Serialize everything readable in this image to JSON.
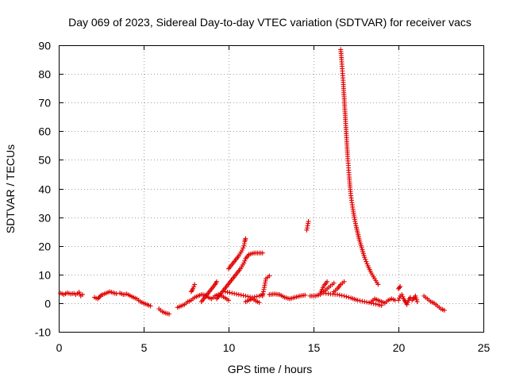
{
  "chart_data": {
    "type": "scatter",
    "title": "Day 069 of 2023, Sidereal Day-to-day VTEC variation (SDTVAR) for receiver vacs",
    "xlabel": "GPS time / hours",
    "ylabel": "SDTVAR / TECUs",
    "xlim": [
      0,
      25
    ],
    "ylim": [
      -10,
      90
    ],
    "xticks": [
      0,
      5,
      10,
      15,
      20,
      25
    ],
    "yticks": [
      -10,
      0,
      10,
      20,
      30,
      40,
      50,
      60,
      70,
      80,
      90
    ],
    "grid": true,
    "marker": "+",
    "color": "#e00000",
    "series": [
      {
        "name": "SDTVAR",
        "segments": [
          [
            [
              0.1,
              3.5
            ],
            [
              0.3,
              3.0
            ],
            [
              0.5,
              3.6
            ],
            [
              0.7,
              3.2
            ],
            [
              0.9,
              3.4
            ],
            [
              1.0,
              3.0
            ],
            [
              1.2,
              3.8
            ],
            [
              1.3,
              2.5
            ],
            [
              1.4,
              3.0
            ]
          ],
          [
            [
              2.1,
              2.0
            ],
            [
              2.3,
              1.5
            ],
            [
              2.5,
              2.8
            ],
            [
              2.8,
              3.5
            ],
            [
              3.0,
              4.0
            ],
            [
              3.2,
              3.6
            ],
            [
              3.4,
              3.3
            ]
          ],
          [
            [
              3.6,
              3.5
            ],
            [
              3.8,
              3.0
            ],
            [
              4.0,
              3.2
            ],
            [
              4.2,
              2.6
            ],
            [
              4.4,
              2.0
            ],
            [
              4.6,
              1.5
            ],
            [
              4.8,
              0.5
            ],
            [
              5.0,
              0.0
            ],
            [
              5.2,
              -0.5
            ],
            [
              5.4,
              -1.0
            ]
          ],
          [
            [
              5.9,
              -2.0
            ],
            [
              6.1,
              -3.0
            ],
            [
              6.3,
              -3.5
            ],
            [
              6.5,
              -3.8
            ]
          ],
          [
            [
              7.0,
              -1.5
            ],
            [
              7.2,
              -1.0
            ],
            [
              7.4,
              -0.5
            ],
            [
              7.6,
              0.5
            ],
            [
              7.8,
              1.0
            ],
            [
              8.0,
              2.0
            ],
            [
              8.2,
              2.5
            ],
            [
              8.4,
              3.0
            ],
            [
              8.6,
              2.8
            ],
            [
              8.8,
              2.0
            ],
            [
              9.0,
              1.5
            ],
            [
              9.2,
              2.5
            ],
            [
              9.4,
              3.0
            ],
            [
              9.6,
              2.5
            ],
            [
              9.8,
              1.8
            ],
            [
              10.0,
              1.0
            ]
          ],
          [
            [
              7.8,
              4.0
            ],
            [
              7.9,
              5.0
            ],
            [
              8.0,
              6.5
            ]
          ],
          [
            [
              8.4,
              0.5
            ],
            [
              8.6,
              2.0
            ],
            [
              8.8,
              3.5
            ],
            [
              9.0,
              5.0
            ],
            [
              9.2,
              6.5
            ],
            [
              9.3,
              7.5
            ]
          ],
          [
            [
              9.3,
              1.5
            ],
            [
              9.5,
              3.0
            ],
            [
              9.7,
              4.5
            ],
            [
              9.9,
              6.0
            ],
            [
              10.1,
              7.5
            ],
            [
              10.3,
              9.0
            ],
            [
              10.5,
              10.5
            ],
            [
              10.7,
              12.0
            ],
            [
              10.9,
              14.0
            ],
            [
              11.0,
              15.5
            ],
            [
              11.2,
              17.0
            ],
            [
              11.5,
              17.5
            ],
            [
              11.8,
              17.5
            ],
            [
              12.0,
              17.5
            ]
          ],
          [
            [
              10.0,
              12.0
            ],
            [
              10.2,
              13.5
            ],
            [
              10.4,
              15.0
            ],
            [
              10.6,
              16.5
            ],
            [
              10.8,
              18.5
            ],
            [
              10.9,
              20.0
            ],
            [
              10.95,
              21.5
            ],
            [
              11.0,
              22.5
            ]
          ],
          [
            [
              9.8,
              4.0
            ],
            [
              10.2,
              3.5
            ],
            [
              10.6,
              3.0
            ],
            [
              11.0,
              2.5
            ],
            [
              11.4,
              2.0
            ],
            [
              11.8,
              2.5
            ],
            [
              12.0,
              3.0
            ]
          ],
          [
            [
              11.0,
              0.5
            ],
            [
              11.2,
              1.0
            ],
            [
              11.4,
              1.5
            ],
            [
              11.6,
              0.8
            ],
            [
              11.8,
              0.2
            ]
          ],
          [
            [
              12.0,
              2.5
            ],
            [
              12.2,
              8.5
            ],
            [
              12.4,
              9.5
            ]
          ],
          [
            [
              12.4,
              3.0
            ],
            [
              12.7,
              3.2
            ],
            [
              13.0,
              3.0
            ],
            [
              13.3,
              2.0
            ],
            [
              13.6,
              1.5
            ],
            [
              13.9,
              2.0
            ],
            [
              14.2,
              2.5
            ],
            [
              14.5,
              2.8
            ]
          ],
          [
            [
              14.6,
              25.5
            ],
            [
              14.65,
              27.0
            ],
            [
              14.7,
              28.5
            ]
          ],
          [
            [
              14.8,
              2.5
            ],
            [
              15.1,
              2.5
            ],
            [
              15.4,
              3.0
            ],
            [
              15.6,
              4.0
            ],
            [
              15.8,
              5.0
            ],
            [
              16.0,
              6.0
            ],
            [
              16.2,
              7.0
            ]
          ],
          [
            [
              15.4,
              3.5
            ],
            [
              15.6,
              6.0
            ],
            [
              15.8,
              7.5
            ]
          ],
          [
            [
              16.2,
              4.0
            ],
            [
              16.4,
              5.0
            ],
            [
              16.6,
              6.5
            ],
            [
              16.8,
              7.5
            ]
          ],
          [
            [
              15.6,
              3.5
            ],
            [
              16.0,
              3.2
            ],
            [
              16.4,
              3.0
            ],
            [
              16.8,
              2.5
            ],
            [
              17.2,
              1.8
            ],
            [
              17.6,
              1.0
            ],
            [
              18.0,
              0.5
            ],
            [
              18.4,
              0.0
            ],
            [
              18.8,
              -0.5
            ],
            [
              19.0,
              -0.8
            ]
          ],
          [
            [
              16.6,
              88.5
            ],
            [
              16.65,
              85.0
            ],
            [
              16.7,
              81.0
            ],
            [
              16.75,
              77.0
            ],
            [
              16.8,
              72.0
            ],
            [
              16.85,
              67.0
            ],
            [
              16.9,
              62.0
            ],
            [
              16.95,
              57.0
            ],
            [
              17.0,
              52.0
            ],
            [
              17.05,
              48.0
            ],
            [
              17.1,
              44.0
            ],
            [
              17.15,
              40.5
            ],
            [
              17.2,
              37.5
            ],
            [
              17.3,
              33.5
            ],
            [
              17.4,
              30.0
            ],
            [
              17.5,
              27.0
            ],
            [
              17.6,
              24.5
            ],
            [
              17.7,
              22.0
            ],
            [
              17.8,
              20.0
            ],
            [
              17.9,
              18.0
            ],
            [
              18.0,
              16.0
            ],
            [
              18.2,
              13.0
            ],
            [
              18.4,
              10.5
            ],
            [
              18.6,
              8.5
            ],
            [
              18.8,
              6.5
            ]
          ],
          [
            [
              18.4,
              0.5
            ],
            [
              18.6,
              1.5
            ],
            [
              18.8,
              1.0
            ],
            [
              19.0,
              0.5
            ],
            [
              19.2,
              0.0
            ],
            [
              19.4,
              1.0
            ],
            [
              19.6,
              1.5
            ],
            [
              19.8,
              1.0
            ]
          ],
          [
            [
              20.0,
              1.0
            ],
            [
              20.1,
              2.5
            ],
            [
              20.2,
              3.0
            ],
            [
              20.3,
              1.5
            ],
            [
              20.4,
              0.5
            ],
            [
              20.5,
              -0.5
            ],
            [
              20.6,
              1.0
            ],
            [
              20.7,
              2.0
            ]
          ],
          [
            [
              20.0,
              5.0
            ],
            [
              20.1,
              5.8
            ]
          ],
          [
            [
              20.8,
              1.0
            ],
            [
              21.0,
              2.5
            ],
            [
              21.1,
              0.5
            ]
          ],
          [
            [
              21.5,
              2.5
            ],
            [
              21.7,
              1.5
            ],
            [
              21.9,
              0.5
            ],
            [
              22.1,
              0.0
            ],
            [
              22.3,
              -1.0
            ],
            [
              22.5,
              -2.0
            ],
            [
              22.7,
              -2.5
            ]
          ]
        ]
      }
    ]
  }
}
